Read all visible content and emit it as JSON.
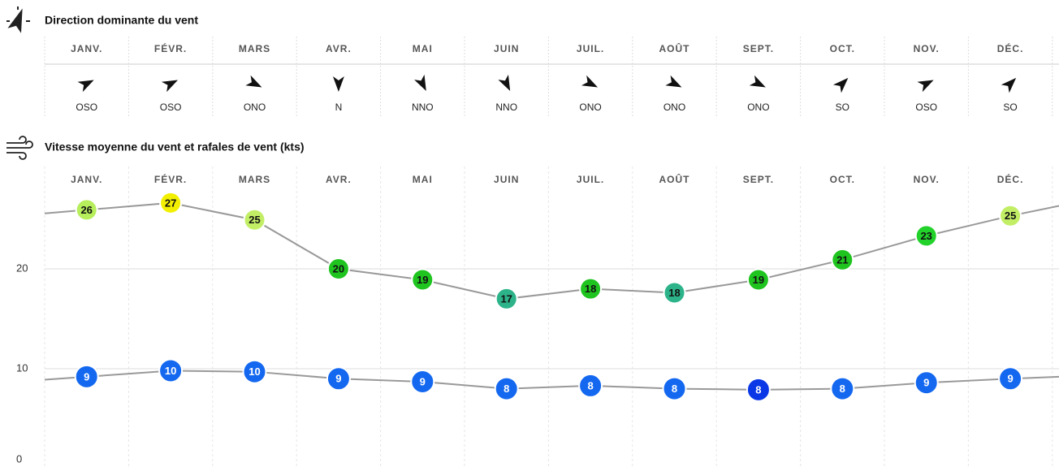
{
  "wind_direction": {
    "title": "Direction dominante du vent",
    "directions": [
      "OSO",
      "OSO",
      "ONO",
      "N",
      "NNO",
      "NNO",
      "ONO",
      "ONO",
      "ONO",
      "SO",
      "OSO",
      "SO"
    ]
  },
  "chart_data": {
    "type": "line",
    "title": "Vitesse moyenne du vent et rafales de vent (kts)",
    "categories": [
      "JANV.",
      "FÉVR.",
      "MARS",
      "AVR.",
      "MAI",
      "JUIN",
      "JUIL.",
      "AOÛT",
      "SEPT.",
      "OCT.",
      "NOV.",
      "DÉC."
    ],
    "series": [
      {
        "color": "#999999",
        "point_colors": [
          "#b6ee5c",
          "#f2f000",
          "#c2ee66",
          "#1fc41f",
          "#1fc41f",
          "#2db389",
          "#1fc41f",
          "#2db389",
          "#1fc41f",
          "#1fc41f",
          "#22d12a",
          "#c2ee66"
        ],
        "values": [
          25.9,
          26.6,
          24.9,
          20.0,
          18.9,
          17.0,
          18.0,
          17.6,
          18.9,
          20.9,
          23.3,
          25.3
        ],
        "value_labels": [
          "26",
          "27",
          "25",
          "20",
          "19",
          "17",
          "18",
          "18",
          "19",
          "21",
          "23",
          "25"
        ]
      },
      {
        "color": "#999999",
        "point_colors": [
          "#1468f0",
          "#1468f0",
          "#1468f0",
          "#1468f0",
          "#1468f0",
          "#1468f0",
          "#1468f0",
          "#1468f0",
          "#0a38e6",
          "#1468f0",
          "#1468f0",
          "#1468f0"
        ],
        "values": [
          9.2,
          9.8,
          9.7,
          9.0,
          8.7,
          8.0,
          8.3,
          8.0,
          7.9,
          8.0,
          8.6,
          9.0
        ],
        "value_labels": [
          "9",
          "10",
          "10",
          "9",
          "9",
          "8",
          "8",
          "8",
          "8",
          "8",
          "9",
          "9"
        ]
      }
    ],
    "ylim": [
      0,
      28
    ],
    "yticks": [
      0,
      10,
      20
    ],
    "grid": true
  }
}
